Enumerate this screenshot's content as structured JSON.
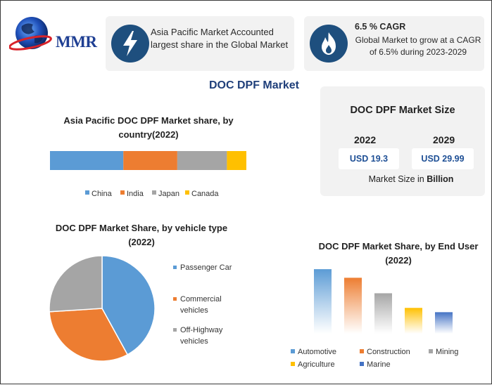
{
  "logo": {
    "text": "MMR"
  },
  "info_cards": [
    {
      "icon": "lightning-icon",
      "text": "Asia Pacific Market Accounted largest share in the Global Market"
    },
    {
      "icon": "flame-icon",
      "title": "6.5 % CAGR",
      "text": "Global Market to grow at a CAGR of 6.5% during 2023-2029"
    }
  ],
  "main_title": "DOC DPF Market",
  "market_size": {
    "title": "DOC DPF Market Size",
    "years": [
      "2022",
      "2029"
    ],
    "values": [
      "USD 19.3",
      "USD 29.99"
    ],
    "note_prefix": "Market Size in ",
    "note_unit": "Billion"
  },
  "colors": {
    "blue": "#5b9bd5",
    "orange": "#ed7d31",
    "gray": "#a5a5a5",
    "yellow": "#ffc000",
    "navy": "#4472c4",
    "badge": "#1e4f7e"
  },
  "chart_data": [
    {
      "type": "bar",
      "orientation": "stacked-horizontal",
      "title": "Asia Pacific DOC DPF  Market share, by country(2022)",
      "series": [
        {
          "name": "China",
          "value": 34,
          "color": "#5b9bd5"
        },
        {
          "name": "India",
          "value": 25,
          "color": "#ed7d31"
        },
        {
          "name": "Japan",
          "value": 23,
          "color": "#a5a5a5"
        },
        {
          "name": "Canada",
          "value": 9,
          "color": "#ffc000"
        }
      ],
      "legend": "bottom"
    },
    {
      "type": "pie",
      "title": "DOC DPF Market Share, by vehicle type (2022)",
      "slices": [
        {
          "name": "Passenger Car",
          "value": 42,
          "color": "#5b9bd5"
        },
        {
          "name": "Commercial vehicles",
          "value": 32,
          "color": "#ed7d31"
        },
        {
          "name": "Off-Highway vehicles",
          "value": 26,
          "color": "#a5a5a5"
        }
      ],
      "legend": "right"
    },
    {
      "type": "bar",
      "title": "DOC DPF Market Share, by End User (2022)",
      "categories": [
        "Automotive",
        "Construction",
        "Mining",
        "Agriculture",
        "Marine"
      ],
      "values": [
        75,
        65,
        47,
        30,
        25
      ],
      "colors": [
        "#5b9bd5",
        "#ed7d31",
        "#a5a5a5",
        "#ffc000",
        "#4472c4"
      ],
      "ylim": [
        0,
        80
      ],
      "legend": "bottom"
    }
  ]
}
